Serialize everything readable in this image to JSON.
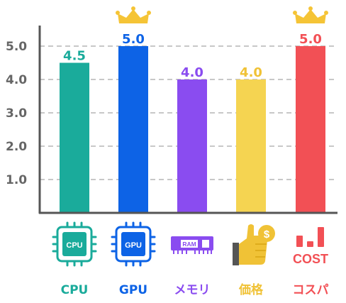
{
  "chart_data": {
    "type": "bar",
    "categories": [
      "CPU",
      "GPU",
      "メモリ",
      "価格",
      "コスパ"
    ],
    "values": [
      4.5,
      5.0,
      4.0,
      4.0,
      5.0
    ],
    "value_labels": [
      "4.5",
      "5.0",
      "4.0",
      "4.0",
      "5.0"
    ],
    "colors": [
      "#1aab9b",
      "#0d63e6",
      "#8a4cf0",
      "#f5d451",
      "#f25055"
    ],
    "label_colors": [
      "#1aab9b",
      "#0d63e6",
      "#8a4cf0",
      "#f0c236",
      "#f25055"
    ],
    "crowned": [
      false,
      true,
      false,
      false,
      true
    ],
    "crown_color": "#f5c436",
    "ylim": [
      0,
      5.5
    ],
    "yticks": [
      "1.0",
      "2.0",
      "3.0",
      "4.0",
      "5.0"
    ],
    "grid": true,
    "icons": [
      "cpu-chip-icon",
      "gpu-chip-icon",
      "ram-module-icon",
      "thumbs-up-dollar-icon",
      "cost-bars-icon"
    ],
    "icon_text": {
      "cpu": "CPU",
      "gpu": "GPU",
      "ram": "RAM",
      "cost": "COST",
      "dollar": "$"
    }
  }
}
